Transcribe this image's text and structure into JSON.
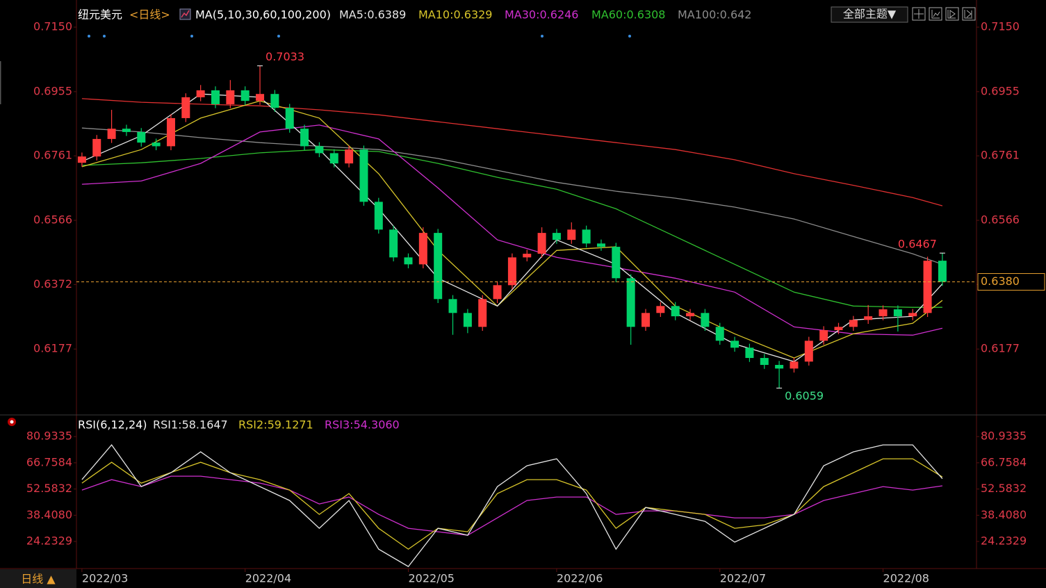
{
  "chart_data": [
    {
      "type": "candlestick",
      "title": "纽元美元",
      "period": "<日线>",
      "indicator": "MA(5,10,30,60,100,200)",
      "button": "全部主题▼",
      "up_color": "#ff3b3b",
      "down_color": "#00d26a",
      "xlim": [
        -0.37,
        60.3
      ],
      "ylim": [
        0.5982,
        0.7211
      ],
      "yticks": [
        {
          "value": 0.715,
          "label": "0.7150"
        },
        0.6955,
        0.6761,
        0.6566,
        0.6372,
        0.6177
      ],
      "candles": {
        "open": [
          0.674,
          0.6759,
          0.6812,
          0.6843,
          0.6833,
          0.6801,
          0.679,
          0.6875,
          0.6938,
          0.6959,
          0.6917,
          0.6959,
          0.6927,
          0.6948,
          0.6906,
          0.6843,
          0.679,
          0.6769,
          0.6738,
          0.678,
          0.6622,
          0.6538,
          0.6454,
          0.6433,
          0.6528,
          0.6328,
          0.6286,
          0.6244,
          0.6328,
          0.637,
          0.6454,
          0.6465,
          0.6528,
          0.6507,
          0.6538,
          0.6496,
          0.6486,
          0.6391,
          0.6244,
          0.6286,
          0.6307,
          0.6276,
          0.6286,
          0.6244,
          0.6202,
          0.6181,
          0.615,
          0.6129,
          0.6118,
          0.6139,
          0.6202,
          0.6234,
          0.6244,
          0.6265,
          0.6276,
          0.6297,
          0.6276,
          0.6286,
          0.6444
        ],
        "high": [
          0.6771,
          0.6824,
          0.69,
          0.6855,
          0.6845,
          0.6813,
          0.6887,
          0.695,
          0.6975,
          0.6971,
          0.699,
          0.6971,
          0.7033,
          0.696,
          0.6918,
          0.6855,
          0.6802,
          0.6781,
          0.6792,
          0.6792,
          0.6634,
          0.655,
          0.6466,
          0.6545,
          0.654,
          0.634,
          0.6298,
          0.634,
          0.6382,
          0.6466,
          0.6477,
          0.6545,
          0.654,
          0.656,
          0.655,
          0.6508,
          0.6498,
          0.6403,
          0.6298,
          0.6319,
          0.6319,
          0.6298,
          0.6298,
          0.6256,
          0.6214,
          0.6193,
          0.6162,
          0.6141,
          0.6151,
          0.6214,
          0.6246,
          0.6256,
          0.6277,
          0.631,
          0.6309,
          0.6309,
          0.6298,
          0.6456,
          0.6467
        ],
        "low": [
          0.6728,
          0.6747,
          0.68,
          0.6821,
          0.6789,
          0.6778,
          0.6778,
          0.6863,
          0.6926,
          0.6905,
          0.6905,
          0.6915,
          0.6915,
          0.6894,
          0.6831,
          0.6778,
          0.6757,
          0.6726,
          0.6726,
          0.661,
          0.6526,
          0.6442,
          0.6421,
          0.6421,
          0.6316,
          0.622,
          0.6225,
          0.6232,
          0.6316,
          0.6358,
          0.6442,
          0.6453,
          0.6495,
          0.6495,
          0.6484,
          0.6474,
          0.6379,
          0.619,
          0.6232,
          0.6274,
          0.6264,
          0.6264,
          0.6232,
          0.619,
          0.6169,
          0.6138,
          0.6117,
          0.6059,
          0.6106,
          0.6127,
          0.619,
          0.6222,
          0.6232,
          0.6253,
          0.6264,
          0.623,
          0.6264,
          0.6274,
          0.6368
        ],
        "close": [
          0.6759,
          0.6812,
          0.6843,
          0.6833,
          0.6801,
          0.679,
          0.6875,
          0.6938,
          0.6959,
          0.6917,
          0.6959,
          0.6927,
          0.6948,
          0.6906,
          0.6843,
          0.679,
          0.6769,
          0.6738,
          0.678,
          0.6622,
          0.6538,
          0.6454,
          0.6433,
          0.6528,
          0.6328,
          0.6286,
          0.6244,
          0.6328,
          0.637,
          0.6454,
          0.6465,
          0.6528,
          0.6507,
          0.6538,
          0.6496,
          0.6486,
          0.6391,
          0.6244,
          0.6286,
          0.6307,
          0.6276,
          0.6286,
          0.6244,
          0.6202,
          0.6181,
          0.615,
          0.6129,
          0.6118,
          0.6139,
          0.6202,
          0.6234,
          0.6244,
          0.6265,
          0.6276,
          0.6297,
          0.6276,
          0.6286,
          0.6444,
          0.638
        ]
      },
      "last_label": "0.6380",
      "last_color": "#e8a030",
      "overlays": {
        "x": [
          0,
          4,
          8,
          12,
          16,
          20,
          24,
          28,
          32,
          36,
          40,
          44,
          48,
          52,
          56,
          58
        ],
        "series": [
          {
            "name": "MA5:0.6389",
            "color": "#e6e6e6",
            "values": [
              0.6744,
              0.6822,
              0.6948,
              0.6938,
              0.678,
              0.6601,
              0.6391,
              0.6307,
              0.6507,
              0.6433,
              0.6286,
              0.6192,
              0.6139,
              0.6265,
              0.6276,
              0.6374
            ]
          },
          {
            "name": "MA10:0.6329",
            "color": "#d8c52a",
            "values": [
              0.6728,
              0.678,
              0.6875,
              0.6927,
              0.6875,
              0.6707,
              0.6475,
              0.6307,
              0.6475,
              0.6486,
              0.6307,
              0.6223,
              0.615,
              0.6223,
              0.6255,
              0.6324
            ]
          },
          {
            "name": "MA30:0.6246",
            "color": "#d030d0",
            "values": [
              0.6675,
              0.6685,
              0.6738,
              0.6833,
              0.6854,
              0.6812,
              0.6664,
              0.6507,
              0.6454,
              0.6423,
              0.6391,
              0.6349,
              0.6244,
              0.6223,
              0.6219,
              0.624
            ]
          },
          {
            "name": "MA60:0.6308",
            "color": "#2fc02f",
            "values": [
              0.6732,
              0.674,
              0.6753,
              0.677,
              0.678,
              0.6774,
              0.6738,
              0.6696,
              0.666,
              0.6601,
              0.6517,
              0.6433,
              0.6349,
              0.6307,
              0.6303,
              0.6303
            ]
          },
          {
            "name": "MA100:0.642",
            "color": "#8c8c8c",
            "values": [
              0.6845,
              0.6833,
              0.6816,
              0.6801,
              0.679,
              0.678,
              0.6753,
              0.6717,
              0.6681,
              0.6654,
              0.6633,
              0.6606,
              0.657,
              0.6517,
              0.6465,
              0.6433
            ]
          },
          {
            "color": "#e03030",
            "values": [
              0.6934,
              0.6923,
              0.6917,
              0.6912,
              0.69,
              0.6885,
              0.6864,
              0.6843,
              0.6822,
              0.6801,
              0.678,
              0.6749,
              0.6707,
              0.6672,
              0.6635,
              0.661
            ]
          }
        ]
      }
    },
    {
      "type": "line",
      "title": "RSI(6,12,24)",
      "footer": "日线 ▲",
      "xlim": [
        -0.37,
        60.3
      ],
      "ylim": [
        9.6,
        91.5
      ],
      "yticks": [
        80.9335,
        66.7584,
        52.5832,
        {
          "value": 38.408,
          "label": "38.4080"
        },
        24.2329
      ],
      "xticks": [
        {
          "value": 0,
          "label": "2022/03"
        },
        {
          "value": 11,
          "label": "2022/04"
        },
        {
          "value": 22,
          "label": "2022/05"
        },
        {
          "value": 32,
          "label": "2022/06"
        },
        {
          "value": 43,
          "label": "2022/07"
        },
        {
          "value": 54,
          "label": "2022/08"
        }
      ],
      "x": [
        0,
        2,
        4,
        6,
        8,
        10,
        12,
        14,
        16,
        18,
        20,
        22,
        24,
        26,
        28,
        30,
        32,
        34,
        36,
        38,
        40,
        42,
        44,
        46,
        48,
        50,
        52,
        54,
        56,
        58
      ],
      "series": [
        {
          "name": "RSI1:58.1647",
          "color": "#e6e6e6",
          "values": [
            57.65,
            76.43,
            53.9,
            61.4,
            72.67,
            61.4,
            53.9,
            46.39,
            31.37,
            46.39,
            20.1,
            10.7,
            31.37,
            27.61,
            53.9,
            65.16,
            68.92,
            50.14,
            20.1,
            42.63,
            38.88,
            35.12,
            23.86,
            31.37,
            38.88,
            65.16,
            72.67,
            76.43,
            76.43,
            58.16
          ]
        },
        {
          "name": "RSI2:59.1271",
          "color": "#d8c52a",
          "values": [
            55.77,
            67.04,
            55.77,
            61.53,
            67.04,
            61.4,
            57.65,
            52.02,
            38.88,
            50.14,
            31.37,
            20.1,
            31.37,
            29.49,
            50.14,
            57.65,
            57.65,
            52.02,
            31.37,
            42.63,
            40.75,
            38.88,
            31.37,
            33.24,
            38.88,
            53.9,
            61.4,
            68.92,
            68.92,
            59.13
          ]
        },
        {
          "name": "RSI3:54.3060",
          "color": "#d030d0",
          "values": [
            52.02,
            57.65,
            53.9,
            59.53,
            59.53,
            57.65,
            55.77,
            52.02,
            44.51,
            48.27,
            38.88,
            31.37,
            29.49,
            27.61,
            37.0,
            46.39,
            48.27,
            48.27,
            38.88,
            40.75,
            40.75,
            38.88,
            37.0,
            37.0,
            38.88,
            46.39,
            50.14,
            53.9,
            52.02,
            54.31
          ]
        }
      ]
    }
  ]
}
